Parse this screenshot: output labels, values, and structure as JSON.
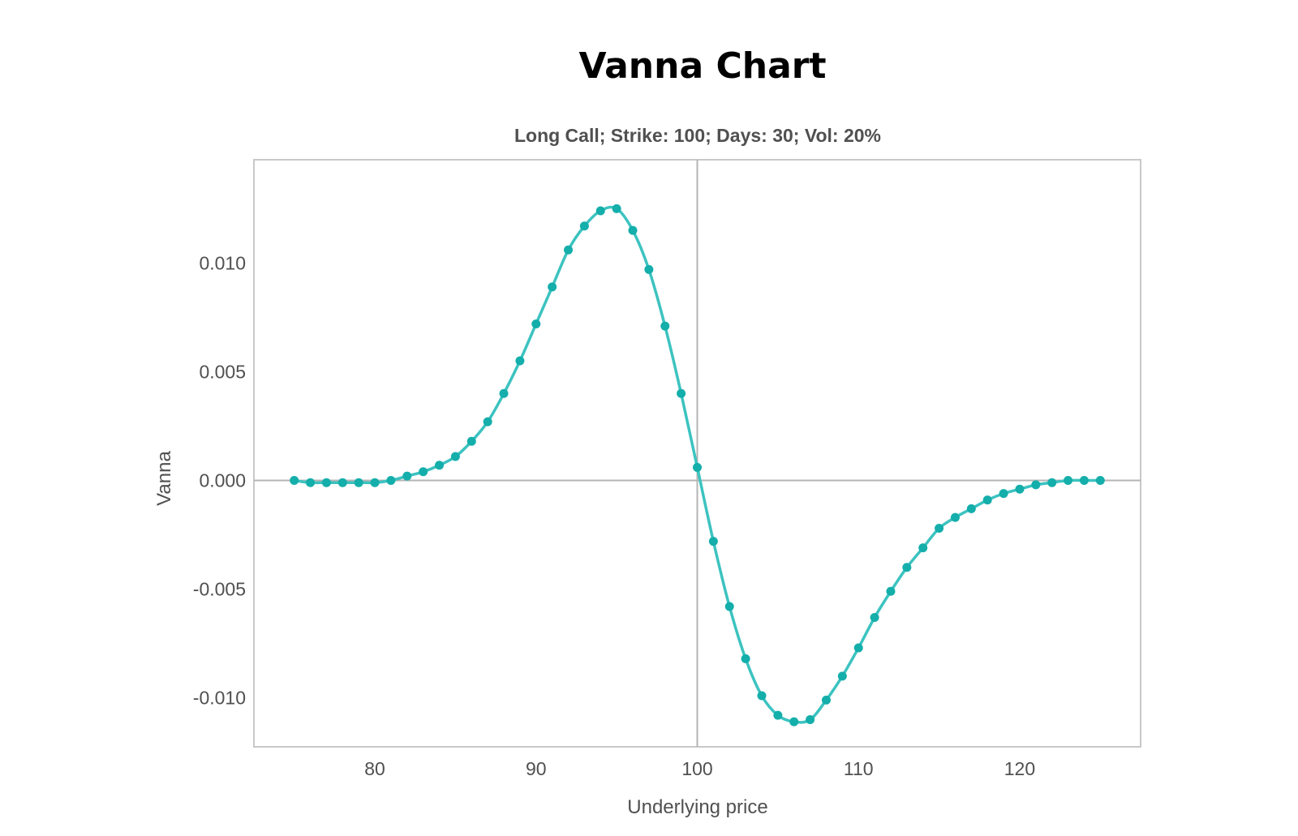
{
  "chart_data": {
    "type": "line",
    "title": "Vanna Chart",
    "subtitle": "Long Call; Strike: 100; Days: 30; Vol: 20%",
    "xlabel": "Underlying price",
    "ylabel": "Vanna",
    "xlim": [
      72.5,
      127.5
    ],
    "ylim": [
      -0.01225,
      0.01475
    ],
    "x_ticks": [
      80,
      90,
      100,
      110,
      120
    ],
    "x_tick_labels": [
      "80",
      "90",
      "100",
      "110",
      "120"
    ],
    "y_ticks": [
      0.01,
      0.005,
      0.0,
      -0.005,
      -0.01
    ],
    "y_tick_labels": [
      "0.010",
      "0.005",
      "0.000",
      "-0.005",
      "-0.010"
    ],
    "reference_lines": {
      "x": 100,
      "y": 0
    },
    "grid": false,
    "legend": "none",
    "colors": {
      "line": "#3cc3c0",
      "marker": "#14aeab",
      "frame": "#c8c8c8",
      "reference": "#b4b4b4"
    },
    "series": [
      {
        "x": [
          75,
          76,
          77,
          78,
          79,
          80,
          81,
          82,
          83,
          84,
          85,
          86,
          87,
          88,
          89,
          90,
          91,
          92,
          93,
          94,
          95,
          96,
          97,
          98,
          99,
          100,
          101,
          102,
          103,
          104,
          105,
          106,
          107,
          108,
          109,
          110,
          111,
          112,
          113,
          114,
          115,
          116,
          117,
          118,
          119,
          120,
          121,
          122,
          123,
          124,
          125
        ],
        "y": [
          0.0,
          -0.0001,
          -0.0001,
          -0.0001,
          -0.0001,
          -0.0001,
          0.0,
          0.0002,
          0.0004,
          0.0007,
          0.0011,
          0.0018,
          0.0027,
          0.004,
          0.0055,
          0.0072,
          0.0089,
          0.0106,
          0.0117,
          0.0124,
          0.0125,
          0.0115,
          0.0097,
          0.0071,
          0.004,
          0.0006,
          -0.0028,
          -0.0058,
          -0.0082,
          -0.0099,
          -0.0108,
          -0.0111,
          -0.011,
          -0.0101,
          -0.009,
          -0.0077,
          -0.0063,
          -0.0051,
          -0.004,
          -0.0031,
          -0.0022,
          -0.0017,
          -0.0013,
          -0.0009,
          -0.0006,
          -0.0004,
          -0.0002,
          -0.0001,
          0.0,
          0.0,
          0.0
        ]
      }
    ]
  }
}
